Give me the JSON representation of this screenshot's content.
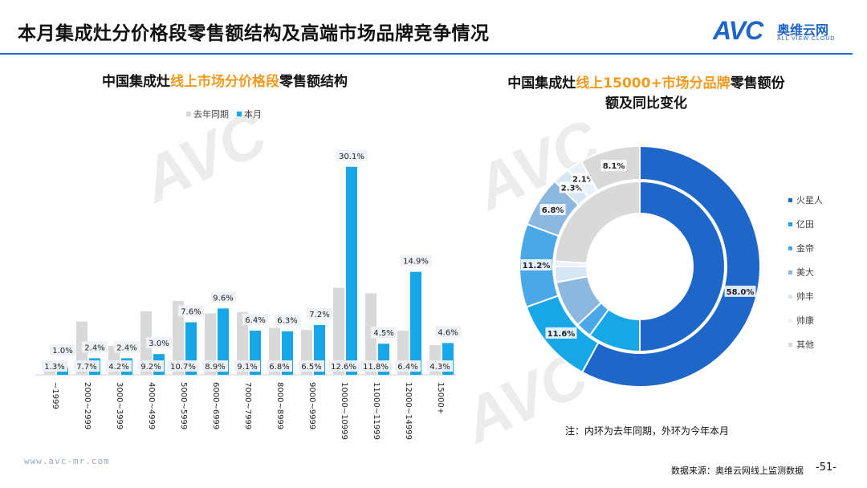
{
  "header": {
    "title": "本月集成灶分价格段零售额结构及高端市场品牌竞争情况",
    "logo_text": "AVC",
    "logo_cn": "奥维云网",
    "logo_en": "ALL VIEW CLOUD"
  },
  "left_title": {
    "prefix": "中国集成灶",
    "highlight": "线上市场分价格段",
    "suffix": "零售额结构"
  },
  "right_title": {
    "prefix": "中国集成灶",
    "highlight": "线上15000+市场分品牌",
    "suffix": "零售额份",
    "line2": "额及同比变化"
  },
  "note": "注：内环为去年同期，外环为今年本月",
  "footer": {
    "url": "www.avc-mr.com",
    "source": "数据来源：奥维云网线上监测数据",
    "page": "-51-"
  },
  "colors": {
    "accent": "#1f66c9",
    "highlight": "#f29a1f",
    "bar_last_year": "#d9d9d9",
    "bar_this_month": "#18a7e6"
  },
  "chart_data": [
    {
      "type": "bar",
      "title": "中国集成灶线上市场分价格段零售额结构",
      "categories": [
        "~1999",
        "2000~2999",
        "3000~3999",
        "4000~4999",
        "5000~5999",
        "6000~6999",
        "7000~7999",
        "8000~8999",
        "9000~9999",
        "10000~10999",
        "11000~11999",
        "12000~14999",
        "15000+"
      ],
      "series": [
        {
          "name": "去年同期",
          "color": "#d9d9d9",
          "values": [
            1.3,
            7.7,
            4.2,
            9.2,
            10.7,
            8.9,
            9.1,
            6.8,
            6.5,
            12.6,
            11.8,
            6.4,
            4.3
          ],
          "labels": [
            "1.3%",
            "7.7%",
            "4.2%",
            "9.2%",
            "10.7%",
            "8.9%",
            "9.1%",
            "6.8%",
            "6.5%",
            "12.6%",
            "11.8%",
            "6.4%",
            "4.3%"
          ]
        },
        {
          "name": "本月",
          "color": "#18a7e6",
          "values": [
            1.0,
            2.4,
            2.4,
            3.0,
            7.6,
            9.6,
            6.4,
            6.3,
            7.2,
            30.1,
            4.5,
            14.9,
            4.6
          ],
          "labels": [
            "1.0%",
            "2.4%",
            "2.4%",
            "3.0%",
            "7.6%",
            "9.6%",
            "6.4%",
            "6.3%",
            "7.2%",
            "30.1%",
            "4.5%",
            "14.9%",
            "4.6%"
          ]
        }
      ],
      "ylim": [
        0,
        31
      ],
      "grid": false,
      "legend": "top"
    },
    {
      "type": "pie",
      "subtype": "donut",
      "title": "中国集成灶线上15000+市场分品牌零售额份额及同比变化",
      "brands": [
        "火星人",
        "亿田",
        "金帝",
        "美大",
        "帅丰",
        "帅康",
        "其他"
      ],
      "colors": [
        "#1f66c9",
        "#18a7e6",
        "#4aa8e8",
        "#8cb8e0",
        "#d6e6f5",
        "#eaf1f8",
        "#d9d9d9"
      ],
      "outer": {
        "name": "本月",
        "values": [
          58.0,
          11.6,
          11.2,
          6.8,
          2.3,
          2.1,
          8.1
        ],
        "labels": [
          "58.0%",
          "11.6%",
          "11.2%",
          "6.8%",
          "2.3%",
          "2.1%",
          "8.1%"
        ]
      },
      "inner": {
        "name": "去年同期",
        "values": [
          50.0,
          10.0,
          3.0,
          9.0,
          3.0,
          1.0,
          24.0
        ]
      },
      "legend": "right"
    }
  ]
}
